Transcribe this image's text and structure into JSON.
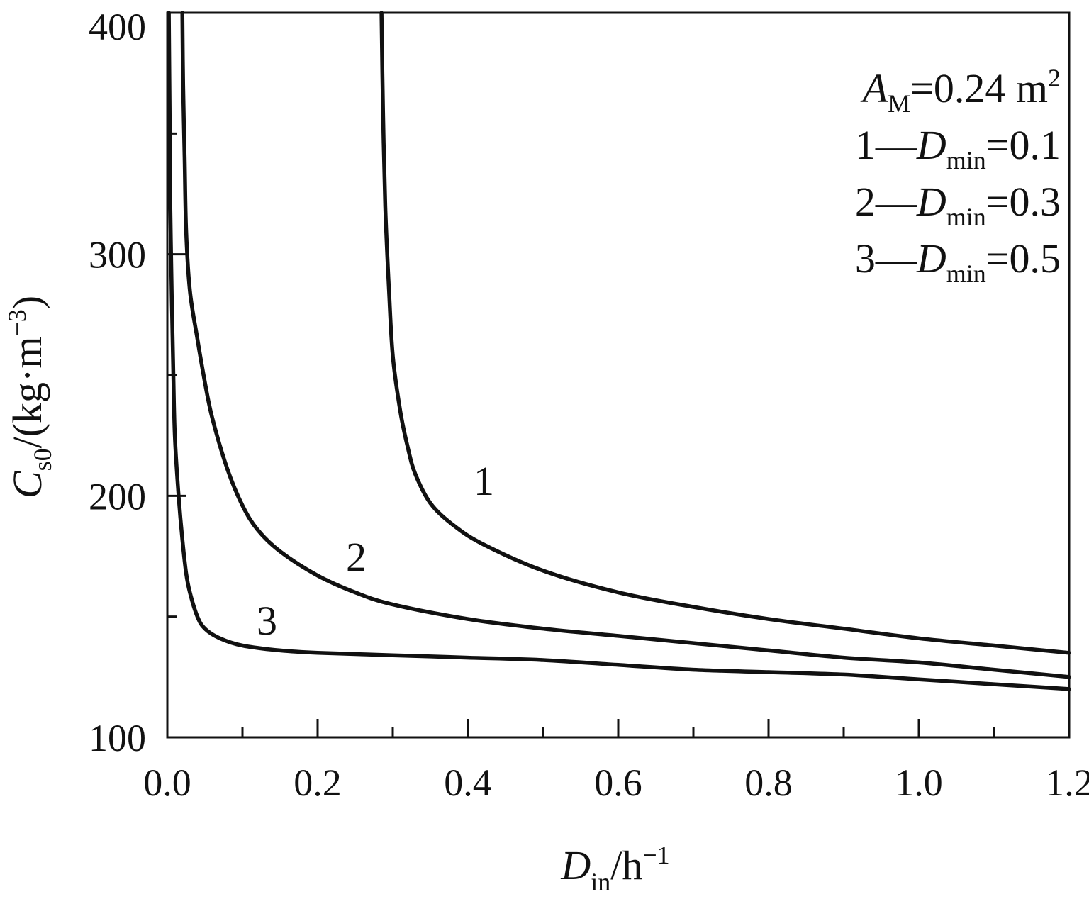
{
  "chart_data": {
    "type": "line",
    "xlabel": {
      "main": "D",
      "sub": "in",
      "unit": "/h",
      "sup": "−1"
    },
    "ylabel": {
      "main": "C",
      "sub": "s0",
      "unit": "/(kg·m",
      "sup": "−3",
      "close": ")"
    },
    "xlim": [
      0.0,
      1.2
    ],
    "ylim": [
      100,
      400
    ],
    "x_ticks": [
      "0.0",
      "0.2",
      "0.4",
      "0.6",
      "0.8",
      "1.0",
      "1.2"
    ],
    "y_ticks": [
      "100",
      "200",
      "300",
      "400"
    ],
    "grid": false,
    "legend": {
      "placement": "top-right",
      "header": {
        "main": "A",
        "sub": "M",
        "value": "=0.24 m",
        "sup": "2"
      },
      "entries": [
        {
          "id": "1",
          "sep": "—",
          "main": "D",
          "sub": "min",
          "value": "=0.1"
        },
        {
          "id": "2",
          "sep": "—",
          "main": "D",
          "sub": "min",
          "value": "=0.3"
        },
        {
          "id": "3",
          "sep": "—",
          "main": "D",
          "sub": "min",
          "value": "=0.5"
        }
      ]
    },
    "series": [
      {
        "label": "1",
        "x": [
          0.285,
          0.287,
          0.29,
          0.295,
          0.3,
          0.31,
          0.32,
          0.33,
          0.35,
          0.38,
          0.42,
          0.5,
          0.6,
          0.7,
          0.8,
          0.9,
          1.0,
          1.1,
          1.2
        ],
        "y": [
          400,
          360,
          320,
          285,
          258,
          235,
          220,
          209,
          197,
          188,
          180,
          169,
          160,
          154,
          149,
          145,
          141,
          138,
          135
        ]
      },
      {
        "label": "2",
        "x": [
          0.02,
          0.021,
          0.023,
          0.025,
          0.03,
          0.04,
          0.05,
          0.06,
          0.08,
          0.1,
          0.12,
          0.15,
          0.2,
          0.25,
          0.3,
          0.4,
          0.5,
          0.6,
          0.7,
          0.8,
          0.9,
          1.0,
          1.1,
          1.2
        ],
        "y": [
          400,
          370,
          340,
          310,
          285,
          265,
          247,
          232,
          211,
          196,
          186,
          177,
          167,
          160,
          155,
          149,
          145,
          142,
          139,
          136,
          133,
          131,
          128,
          125
        ]
      },
      {
        "label": "3",
        "x": [
          0.002,
          0.003,
          0.004,
          0.006,
          0.008,
          0.01,
          0.015,
          0.02,
          0.025,
          0.03,
          0.04,
          0.05,
          0.07,
          0.1,
          0.15,
          0.2,
          0.3,
          0.4,
          0.5,
          0.6,
          0.7,
          0.8,
          0.9,
          1.0,
          1.1,
          1.2
        ],
        "y": [
          400,
          360,
          320,
          280,
          250,
          225,
          200,
          182,
          168,
          160,
          150,
          145,
          141,
          138,
          136,
          135,
          134,
          133,
          132,
          130,
          128,
          127,
          126,
          124,
          122,
          120
        ]
      }
    ],
    "annotations": [
      "1",
      "2",
      "3"
    ]
  }
}
